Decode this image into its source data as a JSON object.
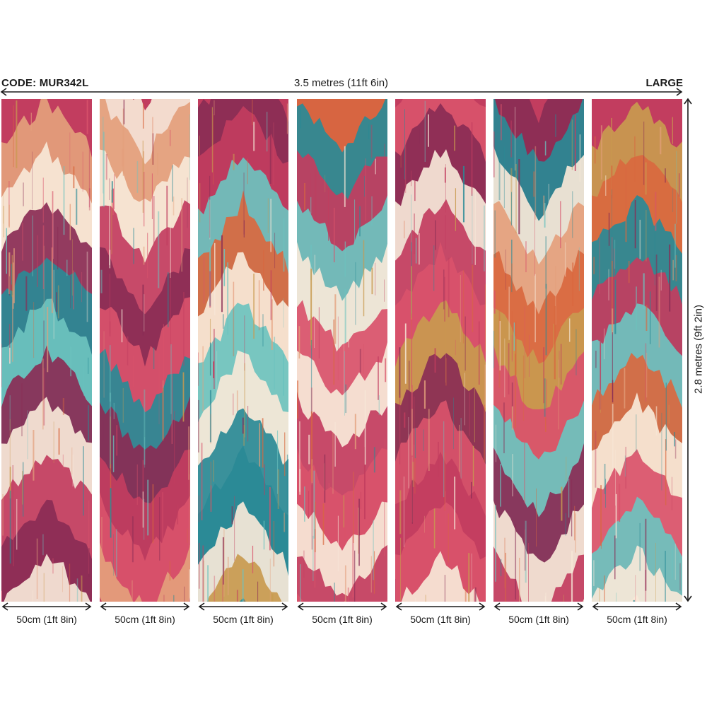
{
  "header": {
    "code": "CODE: MUR342L",
    "width_dimension": "3.5 metres (11ft 6in)",
    "size": "LARGE"
  },
  "side": {
    "height_dimension": "2.8 metres (9ft 2in)"
  },
  "panels": [
    {
      "width_label": "50cm (1ft 8in)"
    },
    {
      "width_label": "50cm (1ft 8in)"
    },
    {
      "width_label": "50cm (1ft 8in)"
    },
    {
      "width_label": "50cm (1ft 8in)"
    },
    {
      "width_label": "50cm (1ft 8in)"
    },
    {
      "width_label": "50cm (1ft 8in)"
    },
    {
      "width_label": "50cm (1ft 8in)"
    }
  ],
  "palette": {
    "magenta": "#c23d5f",
    "plum": "#8a2d55",
    "rose": "#d9536b",
    "teal": "#2a8a96",
    "aqua": "#6cc3bf",
    "cream": "#f7e8d8",
    "peach": "#e4a07c",
    "orange": "#d9683f",
    "mustard": "#c99a4f",
    "line": "#1a1a1a"
  }
}
